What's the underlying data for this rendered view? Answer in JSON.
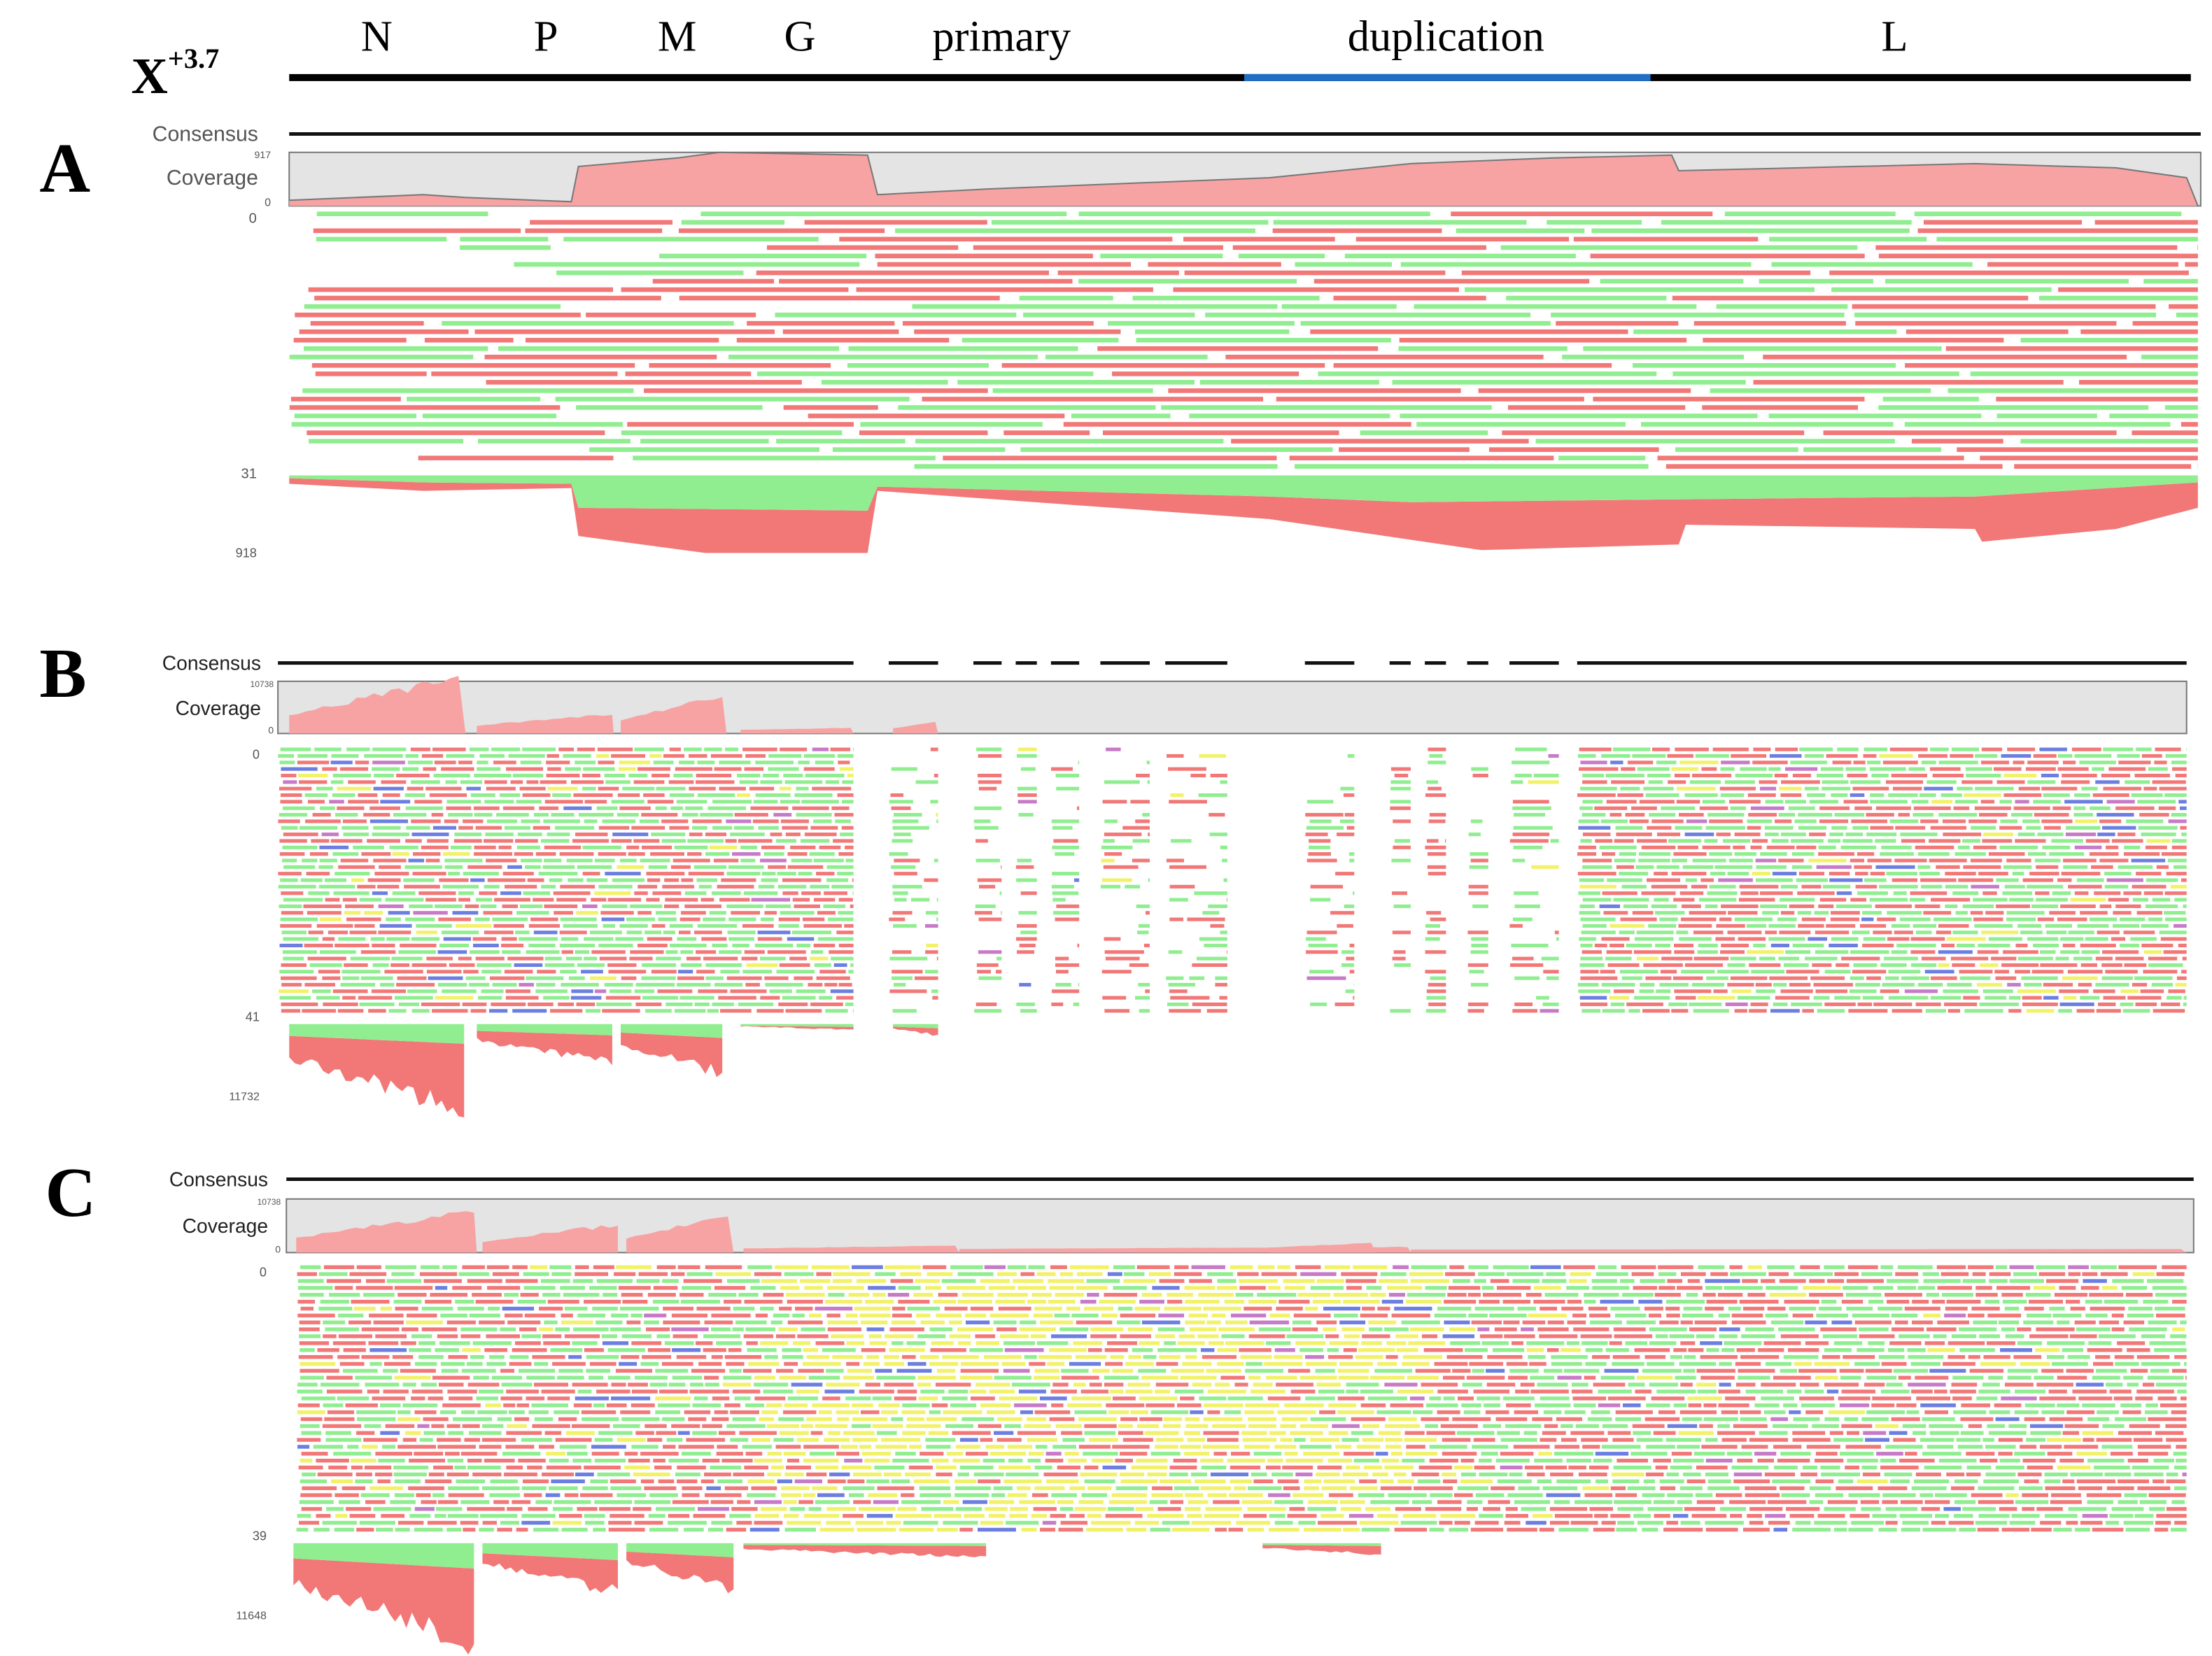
{
  "header": {
    "strain": "X",
    "superscript": "+3.7",
    "genes": [
      "N",
      "P",
      "M",
      "G",
      "primary",
      "duplication",
      "L"
    ]
  },
  "panels": [
    {
      "label": "A",
      "consensus": "Consensus",
      "coverage": "Coverage",
      "coverage_max": "917",
      "coverage_min": "0",
      "reads_top": "0",
      "reads_bottom": "31",
      "depth_max": "918"
    },
    {
      "label": "B",
      "consensus": "Consensus",
      "coverage": "Coverage",
      "coverage_max": "10738",
      "coverage_min": "0",
      "reads_top": "0",
      "reads_bottom": "41",
      "depth_max": "11732"
    },
    {
      "label": "C",
      "consensus": "Consensus",
      "coverage": "Coverage",
      "coverage_max": "10738",
      "coverage_min": "0",
      "reads_top": "0",
      "reads_bottom": "39",
      "depth_max": "11648"
    }
  ]
}
